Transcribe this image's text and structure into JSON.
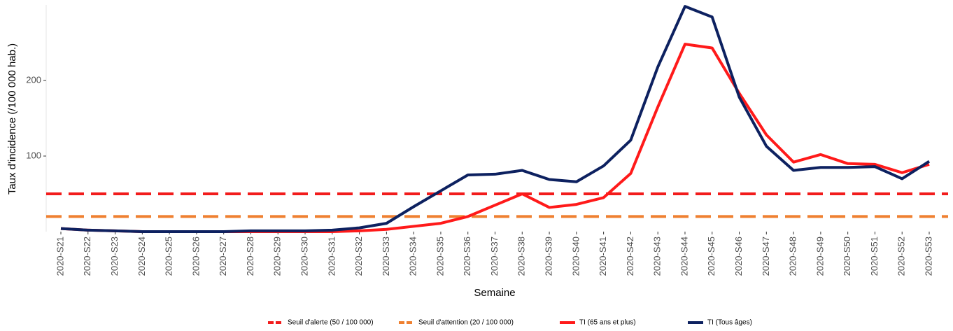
{
  "chart_data": {
    "type": "line",
    "y_label": "Taux d'incidence (/100 000 hab.)",
    "x_label": "Semaine",
    "categories": [
      "2020-S21",
      "2020-S22",
      "2020-S23",
      "2020-S24",
      "2020-S25",
      "2020-S26",
      "2020-S27",
      "2020-S28",
      "2020-S29",
      "2020-S30",
      "2020-S31",
      "2020-S32",
      "2020-S33",
      "2020-S34",
      "2020-S35",
      "2020-S36",
      "2020-S37",
      "2020-S38",
      "2020-S39",
      "2020-S40",
      "2020-S41",
      "2020-S42",
      "2020-S43",
      "2020-S44",
      "2020-S45",
      "2020-S46",
      "2020-S47",
      "2020-S48",
      "2020-S49",
      "2020-S50",
      "2020-S51",
      "2020-S52",
      "2020-S53"
    ],
    "thresholds": [
      {
        "name": "Seuil d'alerte (50 / 100 000)",
        "color": "#f21c1c",
        "value": 50
      },
      {
        "name": "Seuil d'attention (20 / 100 000)",
        "color": "#ef8030",
        "value": 20
      }
    ],
    "series": [
      {
        "name": "TI (65 ans et plus)",
        "color": "#ff1a1a",
        "values": [
          4,
          2,
          1,
          0,
          0,
          0,
          0,
          0,
          0,
          0,
          0,
          1,
          3,
          7,
          11,
          20,
          35,
          50,
          32,
          36,
          45,
          77,
          165,
          248,
          243,
          183,
          128,
          92,
          102,
          90,
          89,
          78,
          89
        ]
      },
      {
        "name": "TI (Tous âges)",
        "color": "#0d2160",
        "values": [
          4,
          2,
          1,
          0,
          0,
          0,
          0,
          1,
          1,
          1,
          2,
          5,
          11,
          33,
          54,
          75,
          76,
          81,
          69,
          66,
          87,
          121,
          218,
          298,
          284,
          178,
          113,
          81,
          85,
          85,
          86,
          70,
          93
        ]
      }
    ],
    "ylim": [
      0,
      300
    ],
    "yticks": [
      100,
      200
    ]
  }
}
